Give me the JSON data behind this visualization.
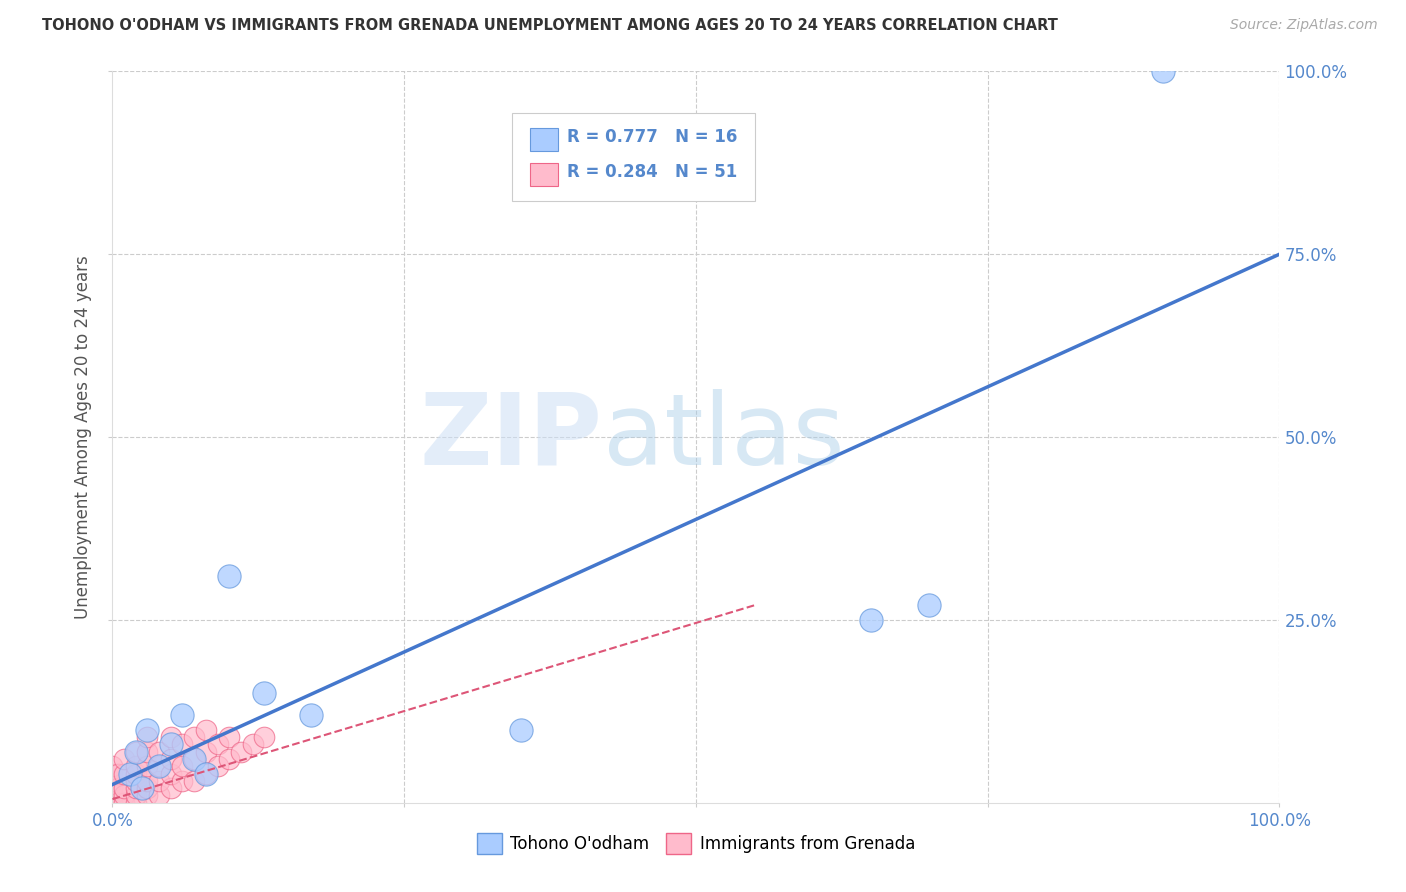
{
  "title": "TOHONO O'ODHAM VS IMMIGRANTS FROM GRENADA UNEMPLOYMENT AMONG AGES 20 TO 24 YEARS CORRELATION CHART",
  "source": "Source: ZipAtlas.com",
  "ylabel": "Unemployment Among Ages 20 to 24 years",
  "xlim": [
    0,
    1.0
  ],
  "ylim": [
    0,
    1.0
  ],
  "blue_R": 0.777,
  "blue_N": 16,
  "pink_R": 0.284,
  "pink_N": 51,
  "blue_label": "Tohono O'odham",
  "pink_label": "Immigrants from Grenada",
  "watermark_zip": "ZIP",
  "watermark_atlas": "atlas",
  "background_color": "#ffffff",
  "grid_color": "#cccccc",
  "blue_color": "#aaccff",
  "blue_edge": "#6699dd",
  "pink_color": "#ffbbcc",
  "pink_edge": "#ee6688",
  "blue_line_color": "#4477cc",
  "pink_line_color": "#dd5577",
  "tick_label_color": "#5588cc",
  "title_color": "#333333",
  "ylabel_color": "#555555",
  "blue_scatter_x": [
    0.015,
    0.02,
    0.025,
    0.03,
    0.04,
    0.05,
    0.06,
    0.07,
    0.08,
    0.1,
    0.13,
    0.17,
    0.35,
    0.65,
    0.7,
    0.9
  ],
  "blue_scatter_y": [
    0.04,
    0.07,
    0.02,
    0.1,
    0.05,
    0.08,
    0.12,
    0.06,
    0.04,
    0.31,
    0.15,
    0.12,
    0.1,
    0.25,
    0.27,
    1.0
  ],
  "pink_scatter_x": [
    0.0,
    0.0,
    0.0,
    0.0,
    0.0,
    0.0,
    0.005,
    0.005,
    0.005,
    0.01,
    0.01,
    0.01,
    0.01,
    0.01,
    0.02,
    0.02,
    0.02,
    0.02,
    0.02,
    0.02,
    0.02,
    0.03,
    0.03,
    0.03,
    0.03,
    0.03,
    0.03,
    0.04,
    0.04,
    0.04,
    0.04,
    0.05,
    0.05,
    0.05,
    0.05,
    0.06,
    0.06,
    0.06,
    0.07,
    0.07,
    0.07,
    0.08,
    0.08,
    0.08,
    0.09,
    0.09,
    0.1,
    0.1,
    0.11,
    0.12,
    0.13
  ],
  "pink_scatter_y": [
    0.0,
    0.01,
    0.02,
    0.03,
    0.04,
    0.05,
    0.0,
    0.02,
    0.04,
    0.0,
    0.01,
    0.02,
    0.04,
    0.06,
    0.0,
    0.01,
    0.02,
    0.03,
    0.04,
    0.05,
    0.07,
    0.01,
    0.02,
    0.03,
    0.05,
    0.07,
    0.09,
    0.01,
    0.03,
    0.05,
    0.07,
    0.02,
    0.04,
    0.06,
    0.09,
    0.03,
    0.05,
    0.08,
    0.03,
    0.06,
    0.09,
    0.04,
    0.07,
    0.1,
    0.05,
    0.08,
    0.06,
    0.09,
    0.07,
    0.08,
    0.09
  ],
  "blue_line_x0": 0.0,
  "blue_line_y0": 0.025,
  "blue_line_x1": 1.0,
  "blue_line_y1": 0.75,
  "pink_line_x0": 0.0,
  "pink_line_y0": 0.005,
  "pink_line_x1": 0.55,
  "pink_line_y1": 0.27
}
